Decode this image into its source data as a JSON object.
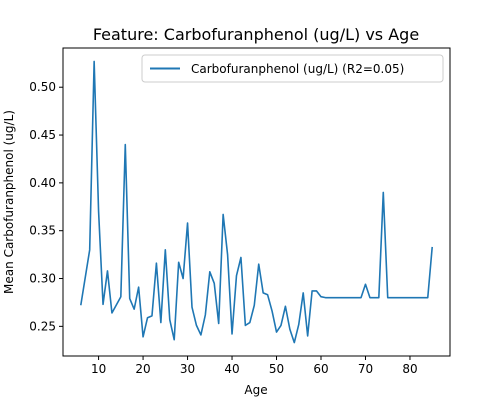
{
  "chart_data": {
    "type": "line",
    "title": "Feature: Carbofuranphenol (ug/L) vs Age",
    "xlabel": "Age",
    "ylabel": "Mean Carbofuranphenol (ug/L)",
    "xlim": [
      2,
      89
    ],
    "ylim": [
      0.219,
      0.541
    ],
    "xticks": [
      10,
      20,
      30,
      40,
      50,
      60,
      70,
      80
    ],
    "yticks": [
      0.25,
      0.3,
      0.35,
      0.4,
      0.45,
      0.5
    ],
    "ytick_labels": [
      "0.25",
      "0.30",
      "0.35",
      "0.40",
      "0.45",
      "0.50"
    ],
    "grid": false,
    "legend_position": "top-right",
    "series": [
      {
        "name": "Carbofuranphenol (ug/L) (R2=0.05)",
        "color": "#1f77b4",
        "x": [
          6,
          8,
          9,
          10,
          11,
          12,
          13,
          15,
          16,
          17,
          18,
          19,
          20,
          21,
          22,
          23,
          24,
          25,
          26,
          27,
          28,
          29,
          30,
          31,
          32,
          33,
          34,
          35,
          36,
          37,
          38,
          39,
          40,
          41,
          42,
          43,
          44,
          45,
          46,
          47,
          48,
          49,
          50,
          51,
          52,
          53,
          54,
          55,
          56,
          57,
          58,
          59,
          60,
          61,
          62,
          63,
          64,
          65,
          66,
          67,
          68,
          69,
          70,
          71,
          72,
          73,
          74,
          75,
          76,
          77,
          78,
          79,
          80,
          81,
          82,
          83,
          84,
          85
        ],
        "y": [
          0.272,
          0.33,
          0.527,
          0.37,
          0.273,
          0.308,
          0.264,
          0.281,
          0.44,
          0.279,
          0.268,
          0.291,
          0.239,
          0.259,
          0.261,
          0.316,
          0.254,
          0.33,
          0.257,
          0.236,
          0.317,
          0.3,
          0.358,
          0.27,
          0.251,
          0.241,
          0.262,
          0.307,
          0.295,
          0.253,
          0.367,
          0.325,
          0.242,
          0.303,
          0.322,
          0.251,
          0.254,
          0.272,
          0.315,
          0.285,
          0.283,
          0.266,
          0.244,
          0.251,
          0.271,
          0.247,
          0.233,
          0.252,
          0.285,
          0.24,
          0.287,
          0.287,
          0.281,
          0.28,
          0.28,
          0.28,
          0.28,
          0.28,
          0.28,
          0.28,
          0.28,
          0.28,
          0.294,
          0.28,
          0.28,
          0.28,
          0.39,
          0.28,
          0.28,
          0.28,
          0.28,
          0.28,
          0.28,
          0.28,
          0.28,
          0.28,
          0.28,
          0.333
        ]
      }
    ]
  }
}
